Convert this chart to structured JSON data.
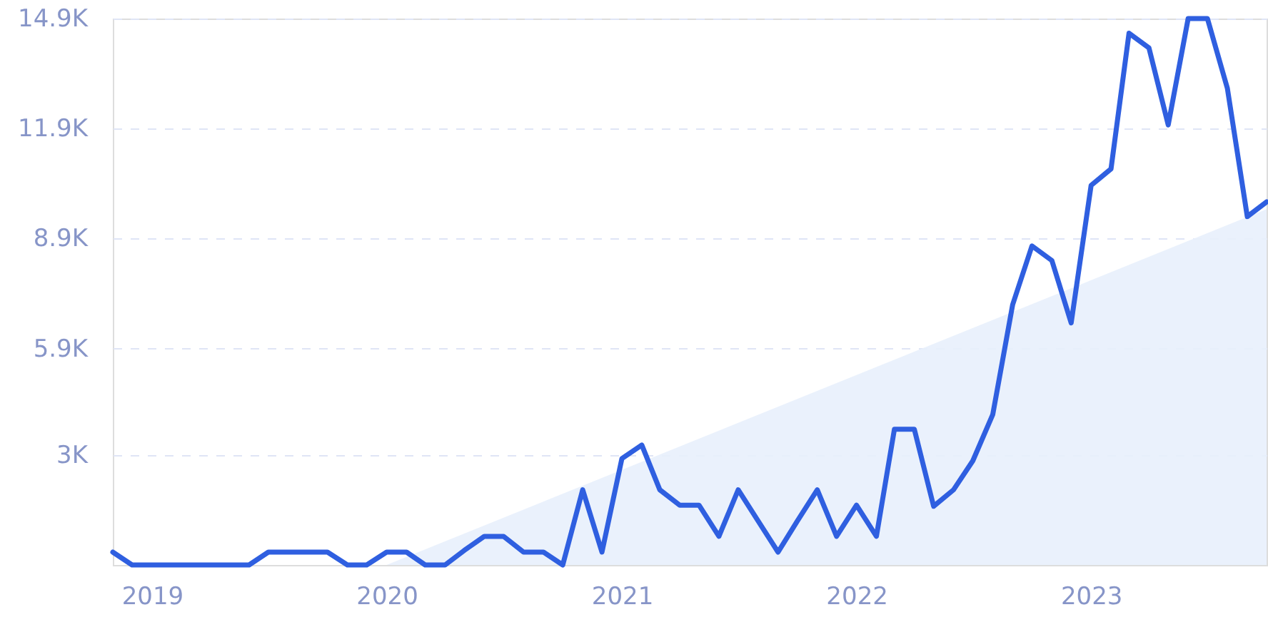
{
  "chart_data": {
    "type": "line",
    "x": [
      "2018-11",
      "2018-12",
      "2019-01",
      "2019-02",
      "2019-03",
      "2019-04",
      "2019-05",
      "2019-06",
      "2019-07",
      "2019-08",
      "2019-09",
      "2019-10",
      "2019-11",
      "2019-12",
      "2020-01",
      "2020-02",
      "2020-03",
      "2020-04",
      "2020-05",
      "2020-06",
      "2020-07",
      "2020-08",
      "2020-09",
      "2020-10",
      "2020-11",
      "2020-12",
      "2021-01",
      "2021-02",
      "2021-03",
      "2021-04",
      "2021-05",
      "2021-06",
      "2021-07",
      "2021-08",
      "2021-09",
      "2021-10",
      "2021-11",
      "2021-12",
      "2022-01",
      "2022-02",
      "2022-03",
      "2022-04",
      "2022-05",
      "2022-06",
      "2022-07",
      "2022-08",
      "2022-09",
      "2022-10",
      "2022-11",
      "2022-12",
      "2023-01",
      "2023-02",
      "2023-03",
      "2023-04",
      "2023-05",
      "2023-06",
      "2023-07",
      "2023-08",
      "2023-09",
      "2023-10"
    ],
    "series": [
      {
        "type": "area",
        "color": "#e8f0fc",
        "x": [
          "2020-01",
          "2023-10"
        ],
        "values": [
          0,
          9700
        ]
      },
      {
        "color": "#2f5fe0",
        "values": [
          350,
          0,
          0,
          0,
          0,
          0,
          0,
          0,
          350,
          350,
          350,
          350,
          0,
          0,
          350,
          350,
          0,
          0,
          400,
          780,
          780,
          350,
          350,
          0,
          2050,
          350,
          2900,
          3270,
          2050,
          1630,
          1630,
          780,
          2050,
          1200,
          350,
          1200,
          2050,
          780,
          1630,
          780,
          3700,
          3700,
          1600,
          2050,
          2840,
          4100,
          7100,
          8700,
          8300,
          6600,
          10350,
          10800,
          14500,
          14100,
          12000,
          14900,
          14900,
          13000,
          9500,
          9900
        ]
      }
    ],
    "xlim": [
      "2018-11",
      "2023-10"
    ],
    "xticks": [
      "2019",
      "2020",
      "2021",
      "2022",
      "2023"
    ],
    "ylim": [
      0,
      14900
    ],
    "yticks": [
      {
        "value": 3000,
        "label": "3K"
      },
      {
        "value": 5900,
        "label": "5.9K"
      },
      {
        "value": 8900,
        "label": "8.9K"
      },
      {
        "value": 11900,
        "label": "11.9K"
      },
      {
        "value": 14900,
        "label": "14.9K"
      }
    ],
    "grid": "y",
    "line_style": "solid",
    "marker": "none"
  }
}
